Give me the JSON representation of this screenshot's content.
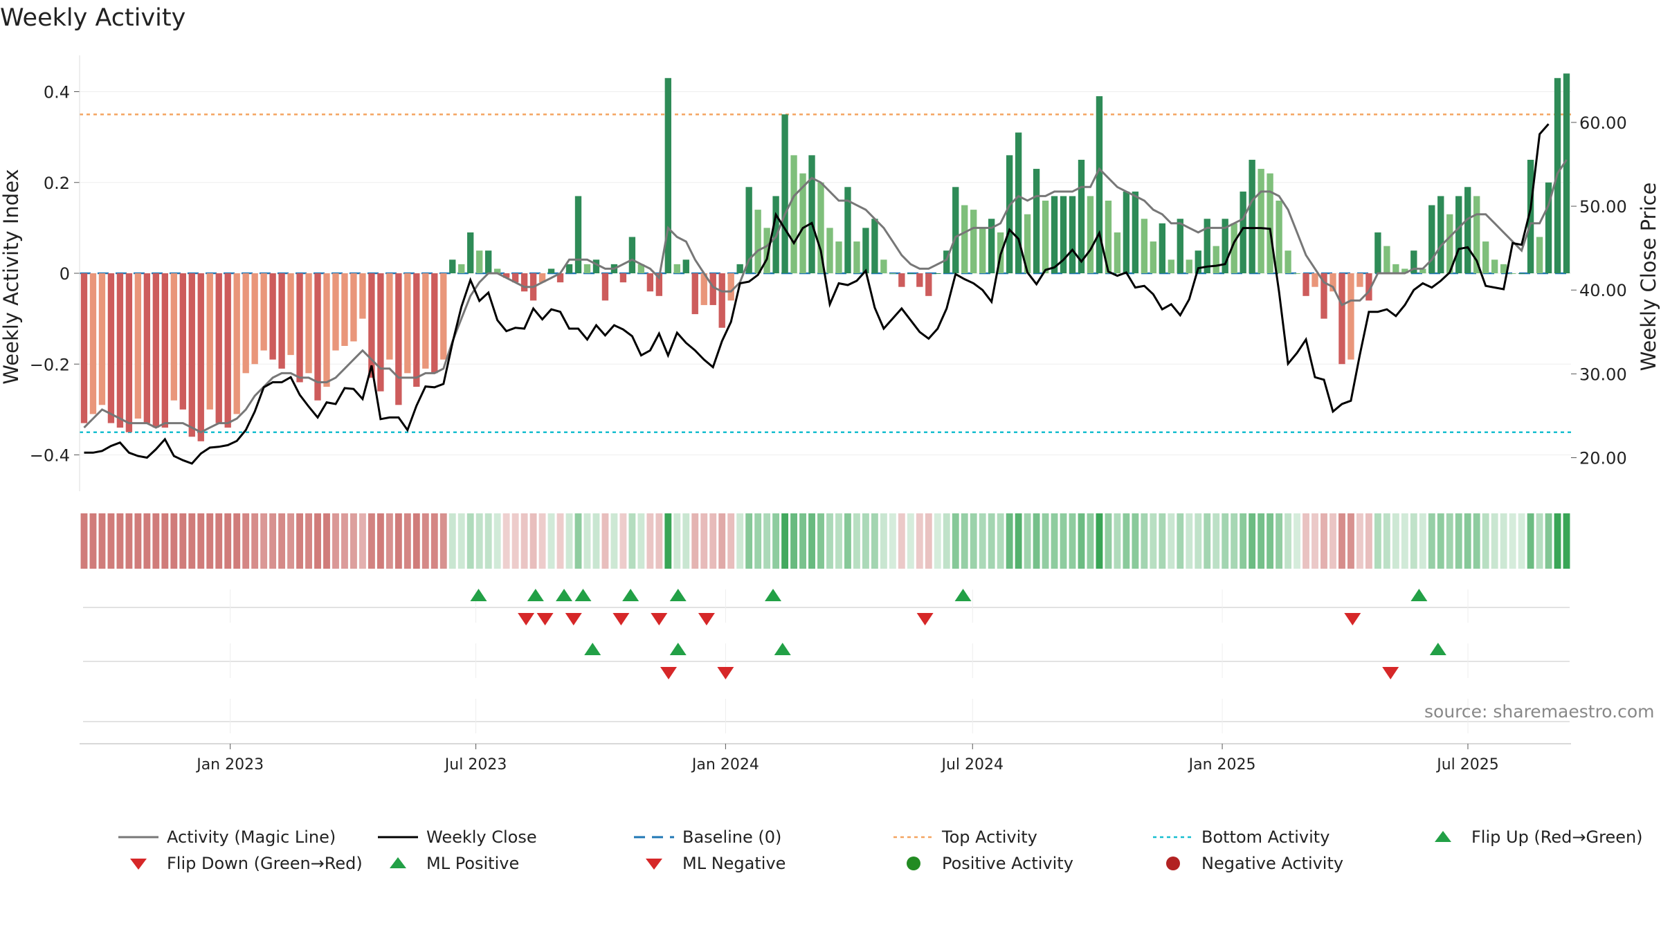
{
  "title": "Weekly Activity",
  "source": "source: sharemaestro.com",
  "colors": {
    "bar_dark_green": "#2e8b57",
    "bar_light_green": "#7fbf7b",
    "bar_dark_red": "#cd5c5c",
    "bar_light_red": "#e9967a",
    "magic_line": "#777777",
    "close_line": "#000000",
    "baseline": "#1f77b4",
    "top": "#f4a460",
    "bottom": "#17becf",
    "flip_up": "#22a046",
    "flip_down": "#d62728"
  },
  "legend": [
    {
      "label": "Activity (Magic Line)",
      "symbol": "line-gray"
    },
    {
      "label": "Weekly Close",
      "symbol": "line-black"
    },
    {
      "label": "Baseline (0)",
      "symbol": "dash-blue"
    },
    {
      "label": "Top Activity",
      "symbol": "dot-orange"
    },
    {
      "label": "Bottom Activity",
      "symbol": "dot-cyan"
    },
    {
      "label": "Flip Up (Red→Green)",
      "symbol": "tri-up"
    },
    {
      "label": "Flip Down (Green→Red)",
      "symbol": "tri-down"
    },
    {
      "label": "ML Positive",
      "symbol": "tri-up"
    },
    {
      "label": "ML Negative",
      "symbol": "tri-down"
    },
    {
      "label": "Positive Activity",
      "symbol": "circle-green"
    },
    {
      "label": "Negative Activity",
      "symbol": "circle-red"
    }
  ],
  "chart_data": {
    "type": "bar",
    "title": "Weekly Activity",
    "ylabel": "Weekly Activity Index",
    "y2label": "Weekly Close Price",
    "ylim": [
      -0.48,
      0.48
    ],
    "y2lim": [
      16.0,
      68.0
    ],
    "yticks": [
      0.4,
      0.2,
      0,
      -0.2,
      -0.4
    ],
    "ytick_labels": [
      "0.4",
      "0.2",
      "0",
      "−0.2",
      "−0.4"
    ],
    "y2ticks": [
      60,
      50,
      40,
      30,
      20
    ],
    "y2tick_labels": [
      "60.00",
      "50.00",
      "40.00",
      "30.00",
      "20.00"
    ],
    "x_start": "2022-09-12",
    "x_end": "2025-09-15",
    "xticks": [
      "2023-01-01",
      "2023-07-01",
      "2024-01-01",
      "2024-07-01",
      "2025-01-01",
      "2025-07-01"
    ],
    "xtick_labels": [
      "Jan 2023",
      "Jul 2023",
      "Jan 2024",
      "Jul 2024",
      "Jan 2025",
      "Jul 2025"
    ],
    "top_activity": 0.35,
    "bottom_activity": -0.35,
    "baseline": 0,
    "activity": [
      -0.33,
      -0.31,
      -0.29,
      -0.33,
      -0.34,
      -0.35,
      -0.32,
      -0.33,
      -0.34,
      -0.34,
      -0.28,
      -0.3,
      -0.36,
      -0.37,
      -0.3,
      -0.33,
      -0.34,
      -0.31,
      -0.22,
      -0.2,
      -0.17,
      -0.19,
      -0.21,
      -0.18,
      -0.24,
      -0.22,
      -0.28,
      -0.25,
      -0.17,
      -0.16,
      -0.15,
      -0.1,
      -0.23,
      -0.26,
      -0.19,
      -0.29,
      -0.22,
      -0.25,
      -0.21,
      -0.22,
      -0.19,
      0.03,
      0.02,
      0.09,
      0.05,
      0.05,
      0.01,
      -0.01,
      -0.02,
      -0.04,
      -0.06,
      -0.02,
      0.01,
      -0.02,
      0.02,
      0.17,
      0.02,
      0.03,
      -0.06,
      0.02,
      -0.02,
      0.08,
      0.02,
      -0.04,
      -0.05,
      0.43,
      0.02,
      0.03,
      -0.09,
      -0.07,
      -0.07,
      -0.12,
      -0.06,
      0.02,
      0.19,
      0.14,
      0.1,
      0.17,
      0.35,
      0.26,
      0.22,
      0.26,
      0.2,
      0.1,
      0.07,
      0.19,
      0.07,
      0.1,
      0.12,
      0.03,
      0.0,
      -0.03,
      0.0,
      -0.03,
      -0.05,
      0.0,
      0.05,
      0.19,
      0.15,
      0.14,
      0.1,
      0.12,
      0.09,
      0.26,
      0.31,
      0.13,
      0.23,
      0.16,
      0.17,
      0.17,
      0.17,
      0.25,
      0.17,
      0.39,
      0.16,
      0.09,
      0.18,
      0.18,
      0.12,
      0.07,
      0.11,
      0.03,
      0.12,
      0.03,
      0.05,
      0.12,
      0.06,
      0.12,
      0.11,
      0.18,
      0.25,
      0.23,
      0.22,
      0.16,
      0.05,
      0.0,
      -0.05,
      -0.03,
      -0.1,
      -0.04,
      -0.2,
      -0.19,
      -0.03,
      -0.06,
      0.09,
      0.06,
      0.02,
      0.01,
      0.05,
      0.01,
      0.15,
      0.17,
      0.13,
      0.17,
      0.19,
      0.17,
      0.07,
      0.03,
      0.02,
      0.0,
      0.0,
      0.25,
      0.08,
      0.2,
      0.43,
      0.44
    ],
    "magic_line": [
      -0.34,
      -0.32,
      -0.3,
      -0.31,
      -0.32,
      -0.33,
      -0.33,
      -0.33,
      -0.34,
      -0.33,
      -0.33,
      -0.33,
      -0.34,
      -0.35,
      -0.34,
      -0.33,
      -0.33,
      -0.32,
      -0.3,
      -0.27,
      -0.25,
      -0.23,
      -0.22,
      -0.22,
      -0.23,
      -0.23,
      -0.24,
      -0.24,
      -0.23,
      -0.21,
      -0.19,
      -0.17,
      -0.19,
      -0.21,
      -0.21,
      -0.23,
      -0.23,
      -0.23,
      -0.22,
      -0.22,
      -0.21,
      -0.15,
      -0.1,
      -0.05,
      -0.02,
      0.0,
      0.0,
      -0.01,
      -0.02,
      -0.03,
      -0.03,
      -0.02,
      -0.01,
      0.0,
      0.03,
      0.03,
      0.03,
      0.02,
      0.01,
      0.01,
      0.02,
      0.03,
      0.02,
      0.01,
      -0.01,
      0.1,
      0.08,
      0.07,
      0.03,
      0.0,
      -0.03,
      -0.04,
      -0.04,
      -0.02,
      0.03,
      0.05,
      0.06,
      0.08,
      0.13,
      0.17,
      0.19,
      0.21,
      0.2,
      0.18,
      0.16,
      0.16,
      0.15,
      0.14,
      0.12,
      0.1,
      0.07,
      0.04,
      0.02,
      0.01,
      0.01,
      0.02,
      0.03,
      0.08,
      0.09,
      0.1,
      0.1,
      0.1,
      0.11,
      0.15,
      0.17,
      0.16,
      0.17,
      0.17,
      0.18,
      0.18,
      0.18,
      0.19,
      0.19,
      0.23,
      0.21,
      0.19,
      0.18,
      0.17,
      0.16,
      0.14,
      0.13,
      0.11,
      0.11,
      0.1,
      0.09,
      0.1,
      0.1,
      0.1,
      0.11,
      0.12,
      0.16,
      0.18,
      0.18,
      0.17,
      0.14,
      0.09,
      0.04,
      0.01,
      -0.02,
      -0.03,
      -0.07,
      -0.06,
      -0.06,
      -0.04,
      0.0,
      0.0,
      0.0,
      0.0,
      0.01,
      0.01,
      0.03,
      0.06,
      0.08,
      0.1,
      0.12,
      0.13,
      0.13,
      0.11,
      0.09,
      0.07,
      0.05,
      0.11,
      0.11,
      0.15,
      0.22,
      0.25
    ],
    "close": [
      20.6,
      20.6,
      20.8,
      21.4,
      21.8,
      20.6,
      20.2,
      20.0,
      21.0,
      22.2,
      20.2,
      19.7,
      19.3,
      20.5,
      21.2,
      21.3,
      21.5,
      22.0,
      23.3,
      25.5,
      28.4,
      29.0,
      29.0,
      29.6,
      27.5,
      26.1,
      24.8,
      26.6,
      26.4,
      28.3,
      28.2,
      27.0,
      31.0,
      24.6,
      24.8,
      24.8,
      23.3,
      26.2,
      28.5,
      28.4,
      28.8,
      33.7,
      38.0,
      41.2,
      38.7,
      39.7,
      36.4,
      35.1,
      35.5,
      35.4,
      37.8,
      36.5,
      37.7,
      37.4,
      35.4,
      35.4,
      34.1,
      35.8,
      34.6,
      35.8,
      35.3,
      34.5,
      32.2,
      32.8,
      34.8,
      32.2,
      34.9,
      33.7,
      32.8,
      31.7,
      30.8,
      33.9,
      36.2,
      40.8,
      41.0,
      41.8,
      43.7,
      49.0,
      47.3,
      45.6,
      47.4,
      48.0,
      44.7,
      38.3,
      40.8,
      40.6,
      41.1,
      42.3,
      37.9,
      35.4,
      36.6,
      37.8,
      36.4,
      35.0,
      34.2,
      35.4,
      37.8,
      41.9,
      41.3,
      40.8,
      40.0,
      38.6,
      44.2,
      47.2,
      46.1,
      42.1,
      40.7,
      42.4,
      42.7,
      43.6,
      44.8,
      43.4,
      44.8,
      46.8,
      42.2,
      41.7,
      42.1,
      40.3,
      40.5,
      39.5,
      37.7,
      38.3,
      37.0,
      38.9,
      42.6,
      42.8,
      42.9,
      43.1,
      45.7,
      47.4,
      47.4,
      47.4,
      47.3,
      39.8,
      31.2,
      32.5,
      34.1,
      29.6,
      29.3,
      25.5,
      26.4,
      26.8,
      32.3,
      37.4,
      37.4,
      37.7,
      36.9,
      38.2,
      40.0,
      40.8,
      40.3,
      41.1,
      42.1,
      44.9,
      45.1,
      43.5,
      40.5,
      40.3,
      40.1,
      45.6,
      45.4,
      49.7,
      58.6,
      59.8
    ],
    "flip_up_dates": [
      "2023-07-03",
      "2023-08-14",
      "2023-09-04",
      "2023-09-18",
      "2023-10-23",
      "2023-11-27",
      "2024-02-05",
      "2024-06-24",
      "2025-05-26"
    ],
    "flip_down_dates": [
      "2023-08-07",
      "2023-08-21",
      "2023-09-11",
      "2023-10-16",
      "2023-11-13",
      "2023-12-18",
      "2024-05-27",
      "2025-04-07"
    ],
    "ml_positive_dates": [
      "2023-09-25",
      "2023-11-27",
      "2024-02-12",
      "2025-06-09"
    ],
    "ml_negative_dates": [
      "2023-11-20",
      "2024-01-01",
      "2025-05-05"
    ]
  }
}
